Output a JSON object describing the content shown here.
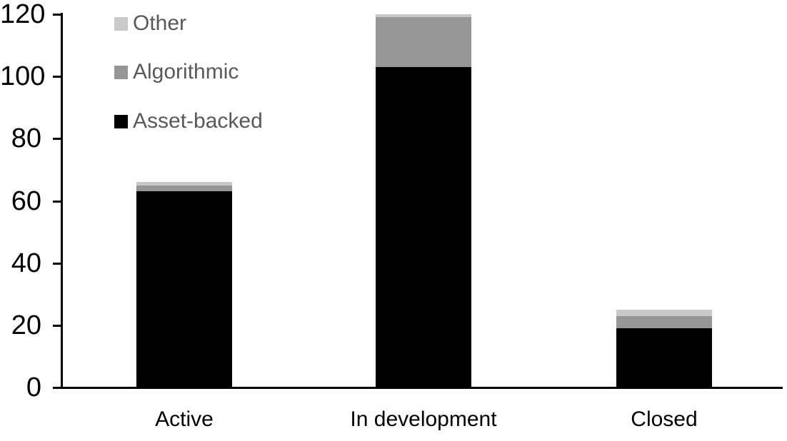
{
  "chart_data": {
    "type": "bar",
    "stacked": true,
    "title": "",
    "xlabel": "",
    "ylabel": "",
    "categories": [
      "Active",
      "In development",
      "Closed"
    ],
    "series": [
      {
        "name": "Asset-backed",
        "color": "#000000",
        "values": [
          63,
          103,
          19
        ]
      },
      {
        "name": "Algorithmic",
        "color": "#969696",
        "values": [
          2,
          16,
          4
        ]
      },
      {
        "name": "Other",
        "color": "#c9c9c9",
        "values": [
          1,
          1,
          2
        ]
      }
    ],
    "ylim": [
      0,
      120
    ],
    "yticks": [
      "0",
      "20",
      "40",
      "60",
      "80",
      "100",
      "120"
    ],
    "grid": false,
    "legend": {
      "position": "top-left",
      "text_color": "#595959",
      "items": [
        {
          "label": "Other",
          "color": "#c9c9c9"
        },
        {
          "label": "Algorithmic",
          "color": "#969696"
        },
        {
          "label": "Asset-backed",
          "color": "#000000"
        }
      ]
    },
    "axis_color": "#000000",
    "background_color": "#ffffff"
  }
}
